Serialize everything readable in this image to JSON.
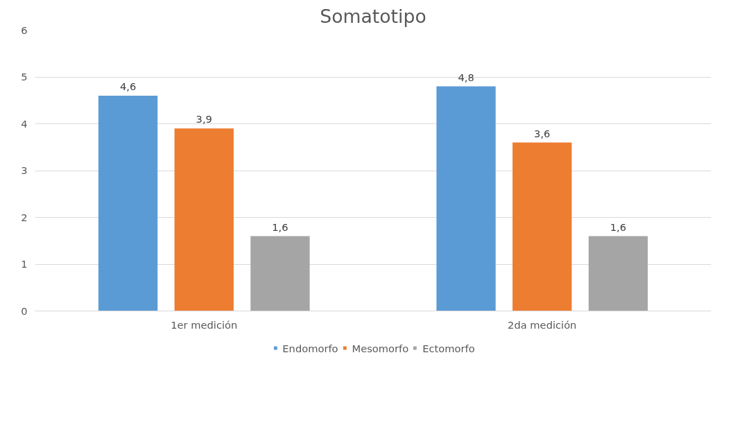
{
  "chart_data": {
    "type": "bar",
    "title": "Somatotipo",
    "categories": [
      "1er medición",
      "2da medición"
    ],
    "series": [
      {
        "name": "Endomorfo",
        "color": "#5b9bd5",
        "values": [
          4.6,
          4.8
        ],
        "value_labels": [
          "4,6",
          "4,8"
        ]
      },
      {
        "name": "Mesomorfo",
        "color": "#ed7d31",
        "values": [
          3.9,
          3.6
        ],
        "value_labels": [
          "3,9",
          "3,6"
        ]
      },
      {
        "name": "Ectomorfo",
        "color": "#a5a5a5",
        "values": [
          1.6,
          1.6
        ],
        "value_labels": [
          "1,6",
          "1,6"
        ]
      }
    ],
    "ylim": [
      0,
      6
    ],
    "yticks": [
      0,
      1,
      2,
      3,
      4,
      5,
      6
    ],
    "grid": "y",
    "legend": "bottom"
  }
}
